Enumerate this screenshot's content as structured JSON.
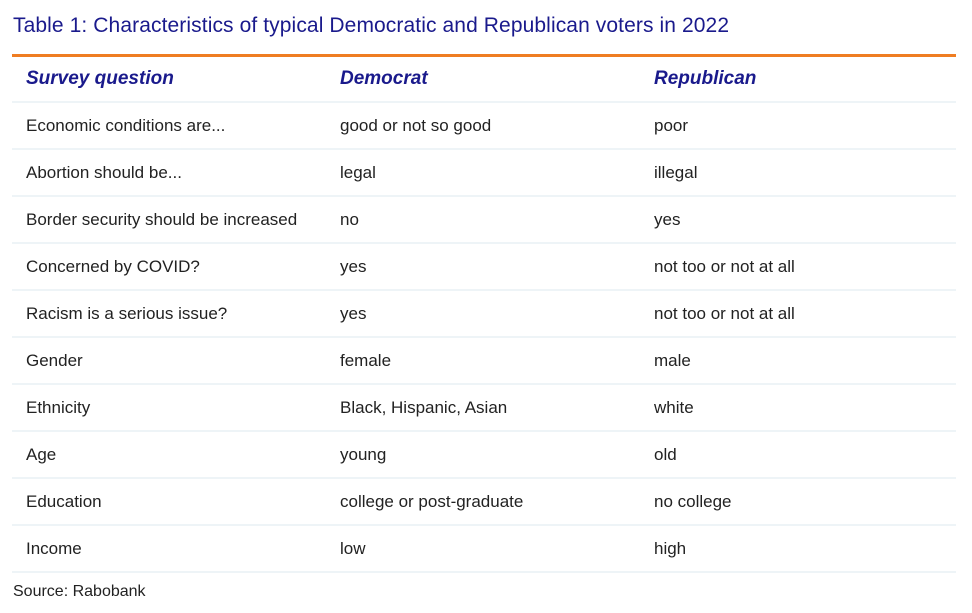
{
  "title": "Table 1: Characteristics of typical Democratic and Republican voters in 2022",
  "columns": [
    "Survey question",
    "Democrat",
    "Republican"
  ],
  "rows": [
    [
      "Economic conditions are...",
      "good or not so good",
      "poor"
    ],
    [
      "Abortion should be...",
      "legal",
      "illegal"
    ],
    [
      "Border security should be increased",
      "no",
      "yes"
    ],
    [
      "Concerned by COVID?",
      "yes",
      "not too or not at all"
    ],
    [
      "Racism is a serious issue?",
      "yes",
      "not too or not at all"
    ],
    [
      "Gender",
      "female",
      "male"
    ],
    [
      "Ethnicity",
      "Black, Hispanic, Asian",
      "white"
    ],
    [
      "Age",
      "young",
      "old"
    ],
    [
      "Education",
      "college or post-graduate",
      "no college"
    ],
    [
      "Income",
      "low",
      "high"
    ]
  ],
  "source": "Source: Rabobank",
  "colors": {
    "title": "#1a1a8c",
    "accent_rule": "#ef7d22",
    "row_divider": "#eef4f7"
  }
}
